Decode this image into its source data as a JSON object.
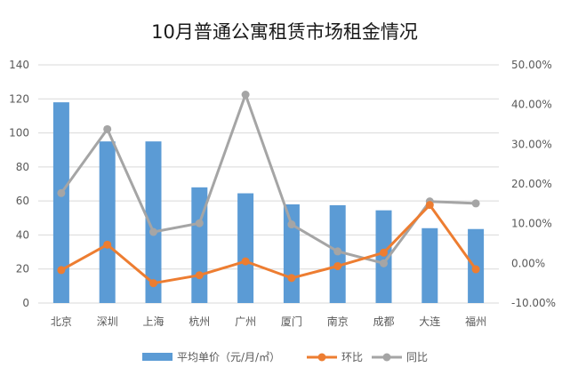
{
  "chart_data": {
    "type": "bar",
    "title": "10月普通公寓租赁市场租金情况",
    "categories": [
      "北京",
      "深圳",
      "上海",
      "杭州",
      "广州",
      "厦门",
      "南京",
      "成都",
      "大连",
      "福州"
    ],
    "left_axis": {
      "min": 0,
      "max": 140,
      "ticks": [
        "0",
        "20",
        "40",
        "60",
        "80",
        "100",
        "120",
        "140"
      ]
    },
    "right_axis": {
      "min": -0.1,
      "max": 0.5,
      "ticks": [
        "-10.00%",
        "0.00%",
        "10.00%",
        "20.00%",
        "30.00%",
        "40.00%",
        "50.00%"
      ]
    },
    "series": [
      {
        "name": "平均单价（元/月/㎡）",
        "type": "bar",
        "axis": "left",
        "color": "#5b9bd5",
        "values": [
          118,
          95,
          95,
          68,
          64.5,
          58,
          57.5,
          54.5,
          44,
          43.5
        ]
      },
      {
        "name": "环比",
        "type": "line",
        "axis": "right",
        "color": "#ed7d31",
        "values": [
          -0.017,
          0.047,
          -0.05,
          -0.03,
          0.005,
          -0.037,
          -0.007,
          0.027,
          0.147,
          -0.015
        ]
      },
      {
        "name": "同比",
        "type": "line",
        "axis": "right",
        "color": "#a5a5a5",
        "values": [
          0.177,
          0.338,
          0.079,
          0.101,
          0.425,
          0.098,
          0.03,
          0.0,
          0.156,
          0.151
        ]
      }
    ],
    "grid": true,
    "legend": "bottom"
  }
}
